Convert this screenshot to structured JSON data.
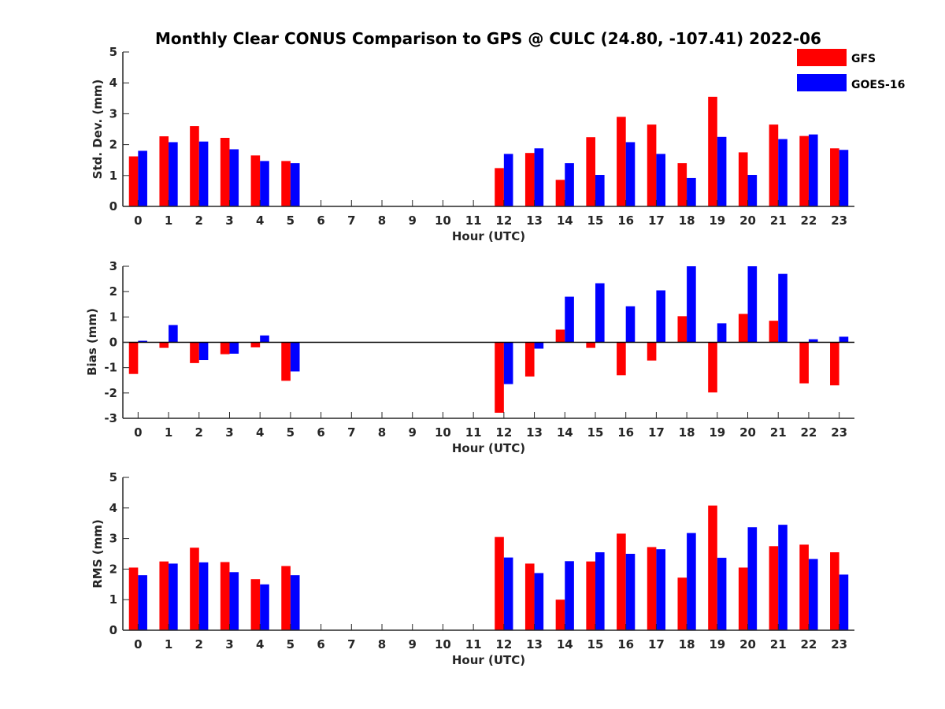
{
  "figure": {
    "title": "Monthly Clear CONUS Comparison to GPS @ CULC (24.80, -107.41) 2022-06"
  },
  "legend": {
    "placement": "top-right",
    "items": [
      {
        "name": "GFS",
        "color": "#ff0000"
      },
      {
        "name": "GOES-16",
        "color": "#0000ff"
      }
    ]
  },
  "chart_data": [
    {
      "type": "bar",
      "ylabel": "Std. Dev. (mm)",
      "xlabel": "Hour (UTC)",
      "ylim": [
        0,
        5
      ],
      "yticks": [
        0,
        1,
        2,
        3,
        4,
        5
      ],
      "categories": [
        "0",
        "1",
        "2",
        "3",
        "4",
        "5",
        "6",
        "7",
        "8",
        "9",
        "10",
        "11",
        "12",
        "13",
        "14",
        "15",
        "16",
        "17",
        "18",
        "19",
        "20",
        "21",
        "22",
        "23"
      ],
      "series": [
        {
          "name": "GFS",
          "color": "#ff0000",
          "values": [
            1.62,
            2.27,
            2.6,
            2.22,
            1.65,
            1.47,
            null,
            null,
            null,
            null,
            null,
            null,
            1.24,
            1.73,
            0.86,
            2.24,
            2.9,
            2.65,
            1.4,
            3.55,
            1.75,
            2.65,
            2.28,
            1.88
          ]
        },
        {
          "name": "GOES-16",
          "color": "#0000ff",
          "values": [
            1.8,
            2.08,
            2.1,
            1.85,
            1.47,
            1.4,
            null,
            null,
            null,
            null,
            null,
            null,
            1.7,
            1.88,
            1.4,
            1.02,
            2.08,
            1.7,
            0.92,
            2.25,
            1.02,
            2.18,
            2.33,
            1.83
          ]
        }
      ]
    },
    {
      "type": "bar",
      "ylabel": "Bias (mm)",
      "xlabel": "Hour (UTC)",
      "ylim": [
        -3,
        3
      ],
      "yticks": [
        -3,
        -2,
        -1,
        0,
        1,
        2,
        3
      ],
      "zero_line": true,
      "categories": [
        "0",
        "1",
        "2",
        "3",
        "4",
        "5",
        "6",
        "7",
        "8",
        "9",
        "10",
        "11",
        "12",
        "13",
        "14",
        "15",
        "16",
        "17",
        "18",
        "19",
        "20",
        "21",
        "22",
        "23"
      ],
      "series": [
        {
          "name": "GFS",
          "color": "#ff0000",
          "values": [
            -1.25,
            -0.22,
            -0.82,
            -0.47,
            -0.2,
            -1.52,
            null,
            null,
            null,
            null,
            null,
            null,
            -2.78,
            -1.35,
            0.5,
            -0.22,
            -1.3,
            -0.72,
            1.03,
            -1.98,
            1.12,
            0.85,
            -1.62,
            -1.7
          ]
        },
        {
          "name": "GOES-16",
          "color": "#0000ff",
          "values": [
            0.06,
            0.68,
            -0.7,
            -0.45,
            0.27,
            -1.15,
            null,
            null,
            null,
            null,
            null,
            null,
            -1.65,
            -0.25,
            1.8,
            2.33,
            1.42,
            2.05,
            3.0,
            0.75,
            3.0,
            2.7,
            0.12,
            0.22
          ]
        }
      ]
    },
    {
      "type": "bar",
      "ylabel": "RMS (mm)",
      "xlabel": "Hour (UTC)",
      "ylim": [
        0,
        5
      ],
      "yticks": [
        0,
        1,
        2,
        3,
        4,
        5
      ],
      "categories": [
        "0",
        "1",
        "2",
        "3",
        "4",
        "5",
        "6",
        "7",
        "8",
        "9",
        "10",
        "11",
        "12",
        "13",
        "14",
        "15",
        "16",
        "17",
        "18",
        "19",
        "20",
        "21",
        "22",
        "23"
      ],
      "series": [
        {
          "name": "GFS",
          "color": "#ff0000",
          "values": [
            2.05,
            2.25,
            2.7,
            2.23,
            1.67,
            2.1,
            null,
            null,
            null,
            null,
            null,
            null,
            3.05,
            2.18,
            1.0,
            2.25,
            3.16,
            2.72,
            1.72,
            4.08,
            2.05,
            2.75,
            2.8,
            2.55
          ]
        },
        {
          "name": "GOES-16",
          "color": "#0000ff",
          "values": [
            1.8,
            2.18,
            2.22,
            1.9,
            1.5,
            1.8,
            null,
            null,
            null,
            null,
            null,
            null,
            2.38,
            1.87,
            2.26,
            2.55,
            2.5,
            2.65,
            3.18,
            2.37,
            3.37,
            3.45,
            2.33,
            1.82
          ]
        }
      ]
    }
  ]
}
